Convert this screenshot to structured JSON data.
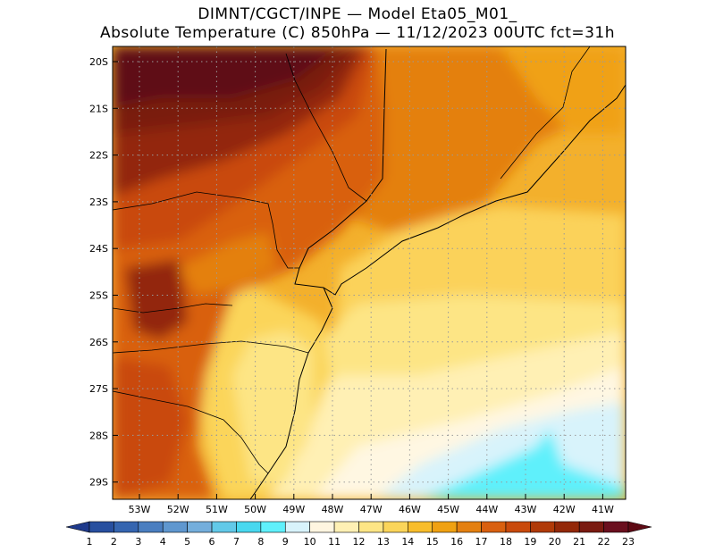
{
  "header": {
    "line1": "DIMNT/CGCT/INPE —  Model Eta05_M01_",
    "line2": "Absolute Temperature (C) 850hPa —  11/12/2023 00UTC fct=31h"
  },
  "map": {
    "lat_labels": [
      "20S",
      "21S",
      "22S",
      "23S",
      "24S",
      "25S",
      "26S",
      "27S",
      "28S",
      "29S"
    ],
    "lon_labels": [
      "53W",
      "52W",
      "51W",
      "50W",
      "49W",
      "48W",
      "47W",
      "46W",
      "45W",
      "44W",
      "43W",
      "42W",
      "41W"
    ],
    "variable": "Absolute Temperature",
    "units": "C",
    "level": "850hPa"
  },
  "colorbar": {
    "labels": [
      "1",
      "2",
      "3",
      "4",
      "5",
      "6",
      "7",
      "8",
      "9",
      "10",
      "11",
      "12",
      "13",
      "14",
      "15",
      "16",
      "17",
      "18",
      "19",
      "20",
      "21",
      "22",
      "23"
    ],
    "colors": [
      "#1f3a8c",
      "#274f9f",
      "#3565b0",
      "#4a7ec0",
      "#5f97cf",
      "#74aedc",
      "#62c9e8",
      "#48d8ef",
      "#5ff0fb",
      "#d8f3fb",
      "#fff5e0",
      "#fff0b4",
      "#fde585",
      "#fbd55a",
      "#f8bd2b",
      "#f0a112",
      "#e48010",
      "#d96010",
      "#c94a0c",
      "#b03a08",
      "#932808",
      "#7a1a10",
      "#6a0f1e",
      "#5e0a14"
    ]
  }
}
